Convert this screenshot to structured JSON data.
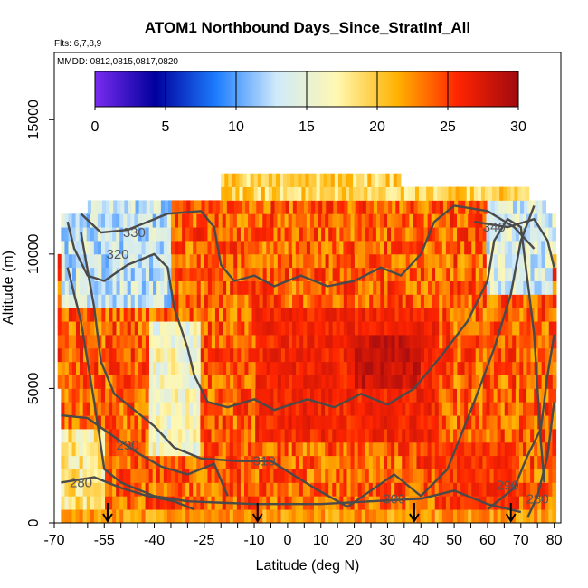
{
  "chart_data": {
    "type": "heatmap",
    "title": "ATOM1 Northbound Days_Since_StratInf_All",
    "flights_note": "Flts: 6,7,8,9",
    "dates_note": "MMDD: 0812,0815,0817,0820",
    "xlabel": "Latitude (deg N)",
    "ylabel": "Altitude (m)",
    "xlim": [
      -70,
      82
    ],
    "ylim": [
      0,
      17500
    ],
    "xticks": [
      -70,
      -55,
      -40,
      -25,
      -10,
      0,
      10,
      20,
      30,
      40,
      50,
      60,
      70,
      80
    ],
    "xtick_labels": [
      "-70",
      "-55",
      "-40",
      "-25",
      "-10",
      "0",
      "10",
      "20",
      "30",
      "40",
      "50",
      "60",
      "70",
      "80"
    ],
    "yticks": [
      0,
      5000,
      10000,
      15000
    ],
    "ytick_labels": [
      "0",
      "5000",
      "10000",
      "15000"
    ],
    "colorbar": {
      "min": 0,
      "max": 30,
      "ticks": [
        "0",
        "5",
        "10",
        "15",
        "20",
        "25",
        "30"
      ],
      "tick_values": [
        0,
        5,
        10,
        15,
        20,
        25,
        30
      ],
      "stops": [
        "#7a2cf0",
        "#00009c",
        "#1c7cff",
        "#cfeafa",
        "#fff8b0",
        "#ffb200",
        "#ff2400",
        "#a00a10"
      ]
    },
    "mask_rows": [
      {
        "y0": 0,
        "y1": 5000,
        "xmin": -68,
        "xmax": 80
      },
      {
        "y0": 5000,
        "y1": 10000,
        "xmin": -69,
        "xmax": 80
      },
      {
        "y0": 10000,
        "y1": 11500,
        "xmin": -68,
        "xmax": 80
      },
      {
        "y0": 11500,
        "y1": 12000,
        "xmin": -60,
        "xmax": 77
      },
      {
        "y0": 12000,
        "y1": 12500,
        "xmin": -20,
        "xmax": 72
      },
      {
        "y0": 12500,
        "y1": 13000,
        "xmin": -20,
        "xmax": 33
      }
    ],
    "cool_regions": [
      {
        "x": [
          -68,
          -35
        ],
        "y": [
          8200,
          11800
        ],
        "value": 13
      },
      {
        "x": [
          60,
          80
        ],
        "y": [
          8500,
          12000
        ],
        "value": 14
      },
      {
        "x": [
          -42,
          -26
        ],
        "y": [
          2500,
          7500
        ],
        "value": 16
      },
      {
        "x": [
          -68,
          -55
        ],
        "y": [
          0,
          3500
        ],
        "value": 18
      }
    ],
    "warm_regions": [
      {
        "x": [
          -10,
          45
        ],
        "y": [
          3000,
          8000
        ],
        "value": 26
      },
      {
        "x": [
          20,
          40
        ],
        "y": [
          5000,
          7000
        ],
        "value": 28
      },
      {
        "x": [
          45,
          70
        ],
        "y": [
          500,
          3000
        ],
        "value": 25
      }
    ],
    "contours": [
      {
        "label": "280",
        "label_at": [
          -62,
          1500
        ],
        "points": [
          [
            -68,
            1500
          ],
          [
            -58,
            1700
          ],
          [
            -50,
            1300
          ],
          [
            -42,
            1000
          ],
          [
            -34,
            800
          ],
          [
            -28,
            500
          ]
        ]
      },
      {
        "label": "290",
        "label_at": [
          -48,
          2900
        ],
        "points": [
          [
            -68,
            4000
          ],
          [
            -60,
            3900
          ],
          [
            -52,
            3200
          ],
          [
            -45,
            2600
          ],
          [
            -38,
            2100
          ],
          [
            -30,
            1800
          ],
          [
            -22,
            2200
          ],
          [
            -18,
            1000
          ]
        ]
      },
      {
        "label": "310",
        "label_at": [
          -7,
          2300
        ],
        "points": [
          [
            -62,
            10800
          ],
          [
            -58,
            8000
          ],
          [
            -56,
            6000
          ],
          [
            -52,
            4800
          ],
          [
            -46,
            4200
          ],
          [
            -40,
            3600
          ],
          [
            -34,
            2800
          ],
          [
            -26,
            2400
          ],
          [
            -15,
            2300
          ],
          [
            -5,
            2300
          ],
          [
            8,
            1300
          ],
          [
            18,
            600
          ],
          [
            25,
            1200
          ],
          [
            32,
            1800
          ],
          [
            40,
            1000
          ],
          [
            48,
            2000
          ],
          [
            56,
            4500
          ],
          [
            62,
            6500
          ],
          [
            67,
            8500
          ],
          [
            70,
            10500
          ],
          [
            74,
            11800
          ]
        ]
      },
      {
        "label": "300",
        "label_at": [
          32,
          900
        ],
        "points": [
          [
            -66,
            9500
          ],
          [
            -62,
            7500
          ],
          [
            -58,
            4500
          ],
          [
            -55,
            2000
          ],
          [
            -50,
            1500
          ],
          [
            -40,
            1000
          ],
          [
            -30,
            800
          ],
          [
            -10,
            700
          ],
          [
            10,
            700
          ],
          [
            25,
            800
          ],
          [
            40,
            900
          ],
          [
            50,
            1200
          ],
          [
            60,
            700
          ],
          [
            70,
            400
          ]
        ]
      },
      {
        "label": "290",
        "label_at": [
          66,
          1400
        ],
        "points": [
          [
            60,
            500
          ],
          [
            68,
            1300
          ],
          [
            72,
            2500
          ],
          [
            76,
            3500
          ],
          [
            78,
            5500
          ],
          [
            80,
            7000
          ]
        ]
      },
      {
        "label": "280",
        "label_at": [
          75,
          900
        ],
        "points": [
          [
            72,
            200
          ],
          [
            75,
            1000
          ],
          [
            78,
            2500
          ],
          [
            80,
            4500
          ]
        ]
      },
      {
        "label": "320",
        "label_at": [
          -51,
          10000
        ],
        "points": [
          [
            -66,
            11200
          ],
          [
            -64,
            10200
          ],
          [
            -60,
            9200
          ],
          [
            -55,
            9000
          ],
          [
            -48,
            9600
          ],
          [
            -40,
            10000
          ],
          [
            -36,
            9500
          ],
          [
            -34,
            8000
          ],
          [
            -30,
            6500
          ],
          [
            -28,
            5500
          ],
          [
            -24,
            4500
          ],
          [
            -18,
            4300
          ],
          [
            -10,
            4600
          ],
          [
            -4,
            4200
          ],
          [
            6,
            4600
          ],
          [
            14,
            4300
          ],
          [
            22,
            4800
          ],
          [
            30,
            4400
          ],
          [
            38,
            5000
          ],
          [
            46,
            6200
          ],
          [
            54,
            7500
          ],
          [
            60,
            9000
          ],
          [
            62,
            10500
          ],
          [
            66,
            11300
          ],
          [
            70,
            11000
          ],
          [
            72,
            9000
          ],
          [
            74,
            7000
          ],
          [
            75,
            5000
          ],
          [
            76,
            3000
          ],
          [
            77,
            1500
          ]
        ]
      },
      {
        "label": "330",
        "label_at": [
          -46,
          10800
        ],
        "points": [
          [
            -62,
            11500
          ],
          [
            -56,
            10800
          ],
          [
            -48,
            10900
          ],
          [
            -42,
            11200
          ],
          [
            -36,
            11500
          ],
          [
            -26,
            11600
          ],
          [
            -22,
            11000
          ],
          [
            -20,
            9600
          ],
          [
            -16,
            9000
          ],
          [
            -10,
            9200
          ],
          [
            -4,
            8800
          ],
          [
            4,
            9200
          ],
          [
            12,
            8800
          ],
          [
            20,
            9000
          ],
          [
            28,
            9500
          ],
          [
            34,
            9200
          ],
          [
            40,
            10000
          ],
          [
            44,
            11200
          ],
          [
            50,
            11800
          ],
          [
            60,
            11600
          ],
          [
            68,
            11000
          ],
          [
            74,
            10200
          ]
        ]
      },
      {
        "label": "340",
        "label_at": [
          62,
          11000
        ],
        "points": [
          [
            56,
            11200
          ],
          [
            66,
            11000
          ],
          [
            74,
            11300
          ],
          [
            78,
            10500
          ],
          [
            80,
            9500
          ]
        ]
      }
    ],
    "arrows": [
      {
        "x": -54,
        "label": ""
      },
      {
        "x": -9,
        "label": ""
      },
      {
        "x": 38,
        "label": ""
      },
      {
        "x": 67,
        "label": ""
      }
    ]
  }
}
